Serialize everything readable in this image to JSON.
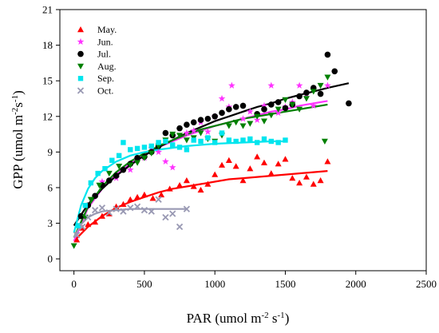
{
  "chart_data": {
    "type": "scatter",
    "xlabel": "PAR (umol m-2 s-1)",
    "ylabel": "GPP (umol m-2s-1)",
    "xlim": [
      -100,
      2500
    ],
    "ylim": [
      -1,
      21
    ],
    "xticks": [
      0,
      500,
      1000,
      1500,
      2000,
      2500
    ],
    "yticks": [
      0,
      3,
      6,
      9,
      12,
      15,
      18,
      21
    ],
    "grid": false,
    "legend_position": "top-left",
    "series": [
      {
        "name": "May.",
        "color": "#ff0000",
        "marker": "triangle-up",
        "points": [
          [
            20,
            1.6
          ],
          [
            60,
            2.6
          ],
          [
            100,
            2.9
          ],
          [
            150,
            3.1
          ],
          [
            200,
            3.6
          ],
          [
            250,
            3.8
          ],
          [
            300,
            4.4
          ],
          [
            350,
            4.6
          ],
          [
            400,
            5.0
          ],
          [
            450,
            5.2
          ],
          [
            500,
            5.4
          ],
          [
            560,
            5.1
          ],
          [
            620,
            5.4
          ],
          [
            680,
            5.9
          ],
          [
            750,
            6.2
          ],
          [
            800,
            6.6
          ],
          [
            850,
            6.1
          ],
          [
            900,
            5.8
          ],
          [
            950,
            6.3
          ],
          [
            1000,
            7.1
          ],
          [
            1050,
            7.9
          ],
          [
            1100,
            8.3
          ],
          [
            1150,
            7.8
          ],
          [
            1200,
            6.6
          ],
          [
            1250,
            7.6
          ],
          [
            1300,
            8.6
          ],
          [
            1350,
            8.1
          ],
          [
            1400,
            7.2
          ],
          [
            1450,
            8.0
          ],
          [
            1500,
            8.4
          ],
          [
            1550,
            6.8
          ],
          [
            1600,
            6.4
          ],
          [
            1650,
            6.9
          ],
          [
            1700,
            6.3
          ],
          [
            1750,
            6.6
          ],
          [
            1800,
            8.2
          ]
        ],
        "fit": [
          [
            0,
            1.5
          ],
          [
            100,
            2.7
          ],
          [
            200,
            3.6
          ],
          [
            300,
            4.3
          ],
          [
            400,
            4.8
          ],
          [
            500,
            5.2
          ],
          [
            600,
            5.6
          ],
          [
            700,
            5.9
          ],
          [
            800,
            6.1
          ],
          [
            900,
            6.3
          ],
          [
            1000,
            6.5
          ],
          [
            1100,
            6.7
          ],
          [
            1200,
            6.8
          ],
          [
            1300,
            6.9
          ],
          [
            1400,
            7.0
          ],
          [
            1500,
            7.1
          ],
          [
            1600,
            7.2
          ],
          [
            1700,
            7.3
          ],
          [
            1800,
            7.4
          ]
        ]
      },
      {
        "name": "Jun.",
        "color": "#ff33ff",
        "marker": "star",
        "points": [
          [
            200,
            6.5
          ],
          [
            300,
            6.8
          ],
          [
            400,
            7.5
          ],
          [
            450,
            8.3
          ],
          [
            500,
            8.5
          ],
          [
            550,
            9.3
          ],
          [
            600,
            9.0
          ],
          [
            650,
            8.2
          ],
          [
            700,
            7.7
          ],
          [
            800,
            10.6
          ],
          [
            850,
            10.8
          ],
          [
            900,
            11.5
          ],
          [
            950,
            10.7
          ],
          [
            1000,
            12.0
          ],
          [
            1050,
            13.5
          ],
          [
            1100,
            12.8
          ],
          [
            1120,
            14.6
          ],
          [
            1200,
            11.8
          ],
          [
            1250,
            12.4
          ],
          [
            1300,
            11.7
          ],
          [
            1350,
            12.9
          ],
          [
            1400,
            14.6
          ],
          [
            1450,
            12.3
          ],
          [
            1500,
            12.8
          ],
          [
            1550,
            13.2
          ],
          [
            1600,
            14.6
          ],
          [
            1650,
            13.9
          ],
          [
            1700,
            12.9
          ],
          [
            1800,
            14.6
          ]
        ],
        "fit": [
          [
            0,
            1.5
          ],
          [
            100,
            4.3
          ],
          [
            200,
            5.9
          ],
          [
            300,
            7.1
          ],
          [
            400,
            8.0
          ],
          [
            500,
            8.8
          ],
          [
            600,
            9.4
          ],
          [
            700,
            9.9
          ],
          [
            800,
            10.4
          ],
          [
            900,
            10.8
          ],
          [
            1000,
            11.2
          ],
          [
            1100,
            11.5
          ],
          [
            1200,
            11.8
          ],
          [
            1300,
            12.1
          ],
          [
            1400,
            12.4
          ],
          [
            1500,
            12.6
          ],
          [
            1600,
            12.9
          ],
          [
            1700,
            13.1
          ],
          [
            1800,
            13.3
          ]
        ]
      },
      {
        "name": "Jul.",
        "color": "#000000",
        "marker": "circle",
        "points": [
          [
            50,
            3.6
          ],
          [
            100,
            4.5
          ],
          [
            150,
            5.3
          ],
          [
            200,
            6.2
          ],
          [
            250,
            6.6
          ],
          [
            300,
            7.0
          ],
          [
            350,
            7.5
          ],
          [
            400,
            8.0
          ],
          [
            450,
            8.5
          ],
          [
            500,
            8.6
          ],
          [
            550,
            9.0
          ],
          [
            600,
            9.5
          ],
          [
            650,
            10.6
          ],
          [
            700,
            10.4
          ],
          [
            750,
            11.0
          ],
          [
            800,
            11.3
          ],
          [
            850,
            11.5
          ],
          [
            900,
            11.7
          ],
          [
            950,
            11.8
          ],
          [
            1000,
            12.0
          ],
          [
            1050,
            12.3
          ],
          [
            1100,
            12.6
          ],
          [
            1150,
            12.8
          ],
          [
            1200,
            12.9
          ],
          [
            1300,
            12.2
          ],
          [
            1350,
            12.6
          ],
          [
            1400,
            13.0
          ],
          [
            1450,
            13.2
          ],
          [
            1500,
            12.7
          ],
          [
            1550,
            13.0
          ],
          [
            1600,
            13.7
          ],
          [
            1650,
            14.0
          ],
          [
            1700,
            14.4
          ],
          [
            1750,
            13.9
          ],
          [
            1800,
            17.2
          ],
          [
            1850,
            15.8
          ],
          [
            1950,
            13.1
          ]
        ],
        "fit": [
          [
            0,
            2.8
          ],
          [
            100,
            4.6
          ],
          [
            200,
            5.9
          ],
          [
            300,
            7.0
          ],
          [
            400,
            7.9
          ],
          [
            500,
            8.7
          ],
          [
            600,
            9.4
          ],
          [
            700,
            10.0
          ],
          [
            800,
            10.6
          ],
          [
            900,
            11.1
          ],
          [
            1000,
            11.6
          ],
          [
            1100,
            12.0
          ],
          [
            1200,
            12.4
          ],
          [
            1300,
            12.8
          ],
          [
            1400,
            13.1
          ],
          [
            1500,
            13.5
          ],
          [
            1600,
            13.8
          ],
          [
            1700,
            14.1
          ],
          [
            1800,
            14.4
          ],
          [
            1950,
            14.8
          ]
        ]
      },
      {
        "name": "Aug.",
        "color": "#008000",
        "marker": "triangle-down",
        "points": [
          [
            0,
            1.1
          ],
          [
            80,
            3.5
          ],
          [
            120,
            5.0
          ],
          [
            180,
            6.2
          ],
          [
            250,
            7.2
          ],
          [
            320,
            7.8
          ],
          [
            400,
            7.9
          ],
          [
            450,
            8.1
          ],
          [
            500,
            8.5
          ],
          [
            550,
            8.9
          ],
          [
            600,
            9.5
          ],
          [
            650,
            10.0
          ],
          [
            700,
            10.5
          ],
          [
            750,
            10.4
          ],
          [
            800,
            10.0
          ],
          [
            850,
            10.2
          ],
          [
            900,
            10.6
          ],
          [
            950,
            10.1
          ],
          [
            1000,
            9.9
          ],
          [
            1050,
            10.4
          ],
          [
            1100,
            11.2
          ],
          [
            1150,
            11.5
          ],
          [
            1200,
            11.2
          ],
          [
            1250,
            11.4
          ],
          [
            1300,
            12.0
          ],
          [
            1350,
            11.6
          ],
          [
            1400,
            12.1
          ],
          [
            1450,
            12.6
          ],
          [
            1500,
            13.4
          ],
          [
            1550,
            13.0
          ],
          [
            1600,
            12.6
          ],
          [
            1650,
            13.5
          ],
          [
            1700,
            14.1
          ],
          [
            1750,
            14.6
          ],
          [
            1780,
            9.9
          ],
          [
            1800,
            15.3
          ]
        ],
        "fit": [
          [
            0,
            1.8
          ],
          [
            100,
            4.4
          ],
          [
            200,
            6.1
          ],
          [
            300,
            7.3
          ],
          [
            400,
            8.2
          ],
          [
            500,
            8.9
          ],
          [
            600,
            9.5
          ],
          [
            700,
            10.0
          ],
          [
            800,
            10.5
          ],
          [
            900,
            10.9
          ],
          [
            1000,
            11.2
          ],
          [
            1100,
            11.5
          ],
          [
            1200,
            11.8
          ],
          [
            1300,
            12.0
          ],
          [
            1400,
            12.2
          ],
          [
            1500,
            12.4
          ],
          [
            1600,
            12.6
          ],
          [
            1700,
            12.8
          ],
          [
            1800,
            13.0
          ]
        ]
      },
      {
        "name": "Sep.",
        "color": "#00e5ee",
        "marker": "square",
        "points": [
          [
            30,
            2.8
          ],
          [
            80,
            4.5
          ],
          [
            120,
            6.4
          ],
          [
            170,
            7.2
          ],
          [
            220,
            7.6
          ],
          [
            270,
            8.3
          ],
          [
            320,
            8.7
          ],
          [
            350,
            9.8
          ],
          [
            400,
            9.2
          ],
          [
            450,
            9.3
          ],
          [
            500,
            9.4
          ],
          [
            550,
            9.5
          ],
          [
            600,
            9.8
          ],
          [
            650,
            9.9
          ],
          [
            700,
            9.6
          ],
          [
            750,
            9.4
          ],
          [
            800,
            9.2
          ],
          [
            850,
            10.0
          ],
          [
            900,
            9.9
          ],
          [
            950,
            10.2
          ],
          [
            1000,
            9.8
          ],
          [
            1050,
            10.6
          ],
          [
            1100,
            10.0
          ],
          [
            1150,
            9.9
          ],
          [
            1200,
            10.0
          ],
          [
            1250,
            10.1
          ],
          [
            1300,
            9.8
          ],
          [
            1350,
            10.1
          ],
          [
            1400,
            9.9
          ],
          [
            1450,
            9.8
          ],
          [
            1500,
            10.0
          ]
        ],
        "fit": [
          [
            0,
            2.2
          ],
          [
            50,
            4.5
          ],
          [
            100,
            5.9
          ],
          [
            150,
            6.8
          ],
          [
            200,
            7.4
          ],
          [
            300,
            8.2
          ],
          [
            400,
            8.7
          ],
          [
            500,
            9.0
          ],
          [
            600,
            9.2
          ],
          [
            800,
            9.5
          ],
          [
            1000,
            9.7
          ],
          [
            1200,
            9.8
          ],
          [
            1400,
            9.9
          ],
          [
            1500,
            9.9
          ]
        ]
      },
      {
        "name": "Oct.",
        "color": "#9999b3",
        "marker": "x",
        "points": [
          [
            20,
            2.0
          ],
          [
            60,
            2.7
          ],
          [
            100,
            3.5
          ],
          [
            150,
            4.1
          ],
          [
            200,
            4.3
          ],
          [
            250,
            3.9
          ],
          [
            300,
            4.2
          ],
          [
            350,
            4.0
          ],
          [
            400,
            4.3
          ],
          [
            450,
            4.4
          ],
          [
            500,
            4.1
          ],
          [
            550,
            4.0
          ],
          [
            600,
            5.0
          ],
          [
            650,
            3.5
          ],
          [
            700,
            3.8
          ],
          [
            750,
            2.7
          ],
          [
            800,
            4.2
          ]
        ],
        "fit": [
          [
            0,
            1.8
          ],
          [
            50,
            2.9
          ],
          [
            100,
            3.5
          ],
          [
            150,
            3.8
          ],
          [
            200,
            4.0
          ],
          [
            300,
            4.1
          ],
          [
            400,
            4.2
          ],
          [
            500,
            4.2
          ],
          [
            600,
            4.2
          ],
          [
            700,
            4.2
          ],
          [
            800,
            4.2
          ]
        ]
      }
    ]
  }
}
